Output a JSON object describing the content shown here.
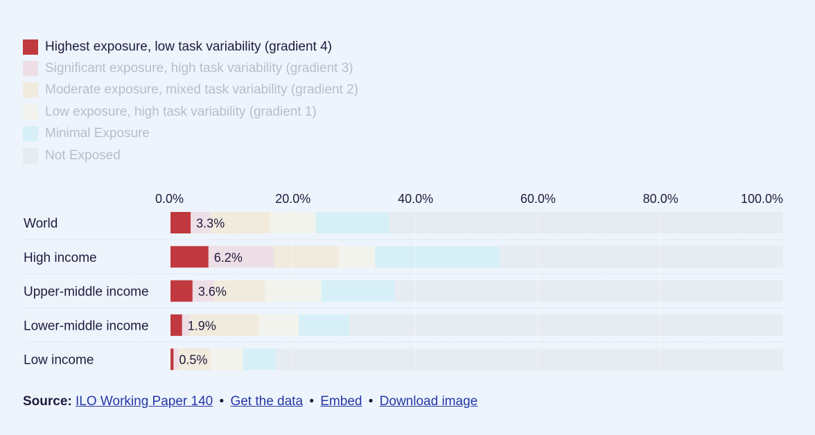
{
  "legend": [
    {
      "label": "Highest exposure, low task variability (gradient 4)",
      "color": "#c0393f",
      "active": true
    },
    {
      "label": "Significant exposure, high task variability (gradient 3)",
      "color": "#eecdd6",
      "active": false
    },
    {
      "label": "Moderate exposure, mixed task variability (gradient 2)",
      "color": "#f3e3c2",
      "active": false
    },
    {
      "label": "Low exposure, high task variability (gradient 1)",
      "color": "#f5f3de",
      "active": false
    },
    {
      "label": "Minimal Exposure",
      "color": "#c5ecf2",
      "active": false
    },
    {
      "label": "Not Exposed",
      "color": "#e1e5ea",
      "active": false
    }
  ],
  "chart_data": {
    "type": "bar",
    "orientation": "horizontal",
    "stacked": true,
    "categories": [
      "World",
      "High income",
      "Upper-middle income",
      "Lower-middle income",
      "Low income"
    ],
    "series": [
      {
        "name": "Highest exposure, low task variability (gradient 4)",
        "color": "#c0393f",
        "active": true,
        "values": [
          3.3,
          6.2,
          3.6,
          1.9,
          0.5
        ]
      },
      {
        "name": "Significant exposure, high task variability (gradient 3)",
        "color": "#eecdd6",
        "active": false,
        "values": [
          3.2,
          10.7,
          3.5,
          1.2,
          0.8
        ]
      },
      {
        "name": "Moderate exposure, mixed task variability (gradient 2)",
        "color": "#f3e3c2",
        "active": false,
        "values": [
          9.8,
          10.5,
          8.3,
          11.2,
          5.2
        ]
      },
      {
        "name": "Low exposure, high task variability (gradient 1)",
        "color": "#f5f3de",
        "active": false,
        "values": [
          7.4,
          6.0,
          9.2,
          6.6,
          5.3
        ]
      },
      {
        "name": "Minimal Exposure",
        "color": "#c5ecf2",
        "active": false,
        "values": [
          12.0,
          20.3,
          12.0,
          8.3,
          5.4
        ]
      },
      {
        "name": "Not Exposed",
        "color": "#e1e5ea",
        "active": false,
        "values": [
          64.3,
          46.3,
          63.4,
          70.8,
          82.8
        ]
      }
    ],
    "data_labels": [
      "3.3%",
      "6.2%",
      "3.6%",
      "1.9%",
      "0.5%"
    ],
    "x_ticks": [
      "0.0%",
      "20.0%",
      "40.0%",
      "60.0%",
      "80.0%",
      "100.0%"
    ],
    "xlim": [
      0,
      100
    ],
    "tick_position": "top",
    "grid": true
  },
  "source": {
    "label": "Source:",
    "links": [
      "ILO Working Paper 140",
      "Get the data",
      "Embed",
      "Download image"
    ],
    "separator": "•"
  }
}
